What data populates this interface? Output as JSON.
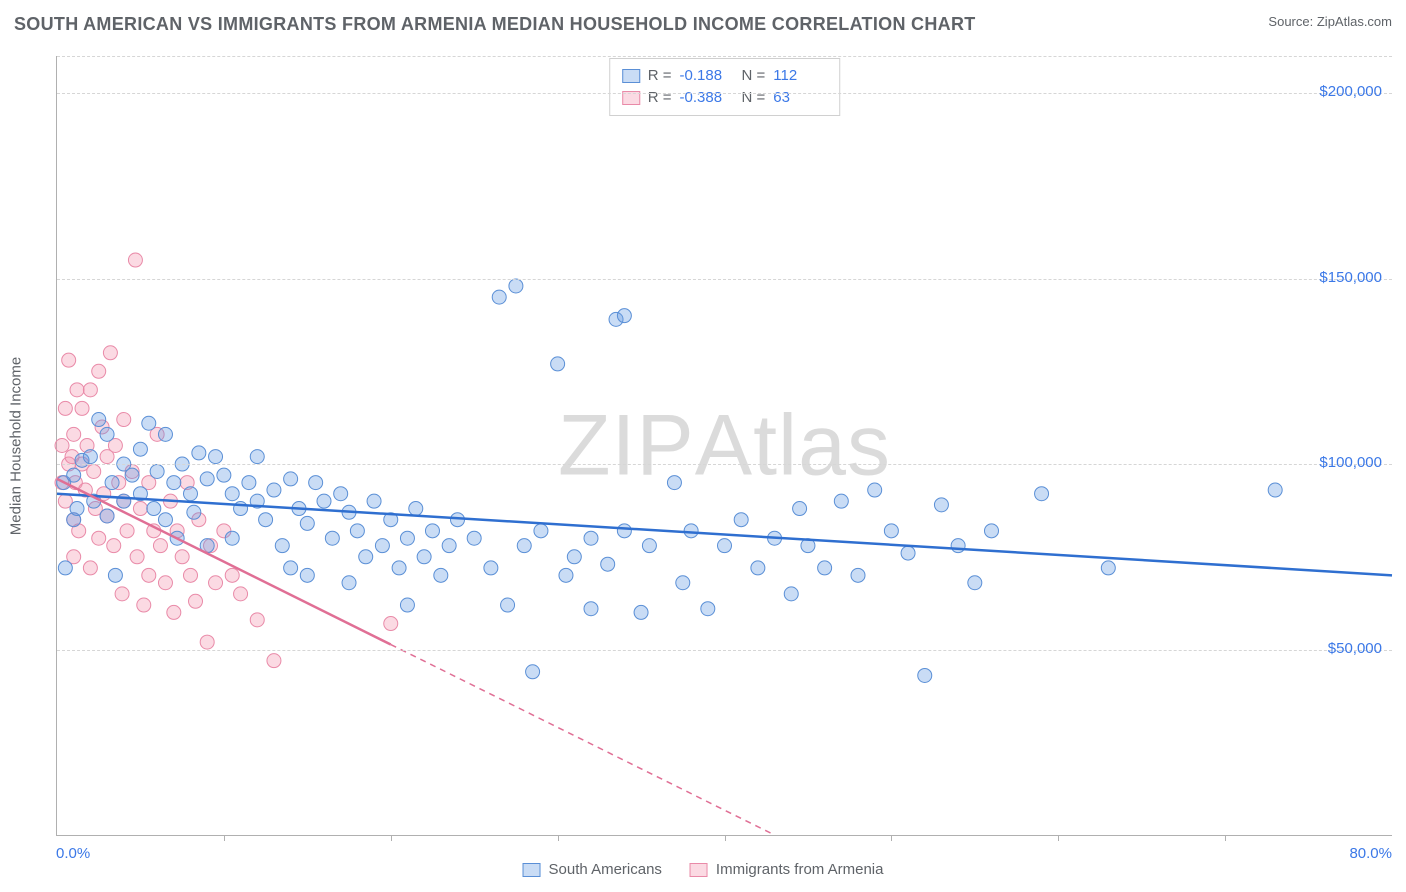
{
  "title": "SOUTH AMERICAN VS IMMIGRANTS FROM ARMENIA MEDIAN HOUSEHOLD INCOME CORRELATION CHART",
  "source_label": "Source:",
  "source_name": "ZipAtlas.com",
  "watermark": "ZIPAtlas",
  "yaxis_label": "Median Household Income",
  "chart": {
    "type": "scatter",
    "xlim": [
      0,
      80
    ],
    "ylim": [
      0,
      210000
    ],
    "x_tick_label_left": "0.0%",
    "x_tick_label_right": "80.0%",
    "y_ticks": [
      50000,
      100000,
      150000,
      200000
    ],
    "y_tick_labels": [
      "$50,000",
      "$100,000",
      "$150,000",
      "$200,000"
    ],
    "grid_color": "#d6d6d6",
    "axis_color": "#b0b0b0",
    "background_color": "#ffffff",
    "x_minor_ticks": 8,
    "series": [
      {
        "id": "south_americans",
        "label": "South Americans",
        "marker_fill": "rgba(99,155,226,0.35)",
        "marker_stroke": "#5a8fd6",
        "marker_radius": 7,
        "trend_color": "#2f6fd0",
        "trend_width": 2.5,
        "trend_dash": "none",
        "trend": {
          "x1": 0,
          "y1": 92000,
          "x2": 80,
          "y2": 70000
        },
        "R": "-0.188",
        "N": "112",
        "points": [
          [
            0.5,
            72000
          ],
          [
            0.4,
            95000
          ],
          [
            1,
            97000
          ],
          [
            1,
            85000
          ],
          [
            1.5,
            101000
          ],
          [
            1.2,
            88000
          ],
          [
            2,
            102000
          ],
          [
            2.2,
            90000
          ],
          [
            2.5,
            112000
          ],
          [
            3,
            108000
          ],
          [
            3,
            86000
          ],
          [
            3.3,
            95000
          ],
          [
            3.5,
            70000
          ],
          [
            4,
            100000
          ],
          [
            4,
            90000
          ],
          [
            4.5,
            97000
          ],
          [
            5,
            104000
          ],
          [
            5,
            92000
          ],
          [
            5.5,
            111000
          ],
          [
            5.8,
            88000
          ],
          [
            6,
            98000
          ],
          [
            6.5,
            108000
          ],
          [
            6.5,
            85000
          ],
          [
            7,
            95000
          ],
          [
            7.2,
            80000
          ],
          [
            7.5,
            100000
          ],
          [
            8,
            92000
          ],
          [
            8.2,
            87000
          ],
          [
            8.5,
            103000
          ],
          [
            9,
            96000
          ],
          [
            9,
            78000
          ],
          [
            9.5,
            102000
          ],
          [
            10,
            97000
          ],
          [
            10.5,
            92000
          ],
          [
            10.5,
            80000
          ],
          [
            11,
            88000
          ],
          [
            11.5,
            95000
          ],
          [
            12,
            90000
          ],
          [
            12,
            102000
          ],
          [
            12.5,
            85000
          ],
          [
            13,
            93000
          ],
          [
            13.5,
            78000
          ],
          [
            14,
            96000
          ],
          [
            14,
            72000
          ],
          [
            14.5,
            88000
          ],
          [
            15,
            84000
          ],
          [
            15,
            70000
          ],
          [
            15.5,
            95000
          ],
          [
            16,
            90000
          ],
          [
            16.5,
            80000
          ],
          [
            17,
            92000
          ],
          [
            17.5,
            87000
          ],
          [
            17.5,
            68000
          ],
          [
            18,
            82000
          ],
          [
            18.5,
            75000
          ],
          [
            19,
            90000
          ],
          [
            19.5,
            78000
          ],
          [
            20,
            85000
          ],
          [
            20.5,
            72000
          ],
          [
            21,
            80000
          ],
          [
            21,
            62000
          ],
          [
            21.5,
            88000
          ],
          [
            22,
            75000
          ],
          [
            22.5,
            82000
          ],
          [
            23,
            70000
          ],
          [
            23.5,
            78000
          ],
          [
            24,
            85000
          ],
          [
            25,
            80000
          ],
          [
            26,
            72000
          ],
          [
            26.5,
            145000
          ],
          [
            27,
            62000
          ],
          [
            27.5,
            148000
          ],
          [
            28,
            78000
          ],
          [
            28.5,
            44000
          ],
          [
            29,
            82000
          ],
          [
            30,
            127000
          ],
          [
            30.5,
            70000
          ],
          [
            31,
            75000
          ],
          [
            32,
            80000
          ],
          [
            32,
            61000
          ],
          [
            33,
            73000
          ],
          [
            33.5,
            139000
          ],
          [
            34,
            82000
          ],
          [
            34,
            140000
          ],
          [
            35,
            60000
          ],
          [
            35.5,
            78000
          ],
          [
            37,
            95000
          ],
          [
            37.5,
            68000
          ],
          [
            38,
            82000
          ],
          [
            39,
            61000
          ],
          [
            40,
            78000
          ],
          [
            41,
            85000
          ],
          [
            42,
            72000
          ],
          [
            43,
            80000
          ],
          [
            44,
            65000
          ],
          [
            44.5,
            88000
          ],
          [
            45,
            78000
          ],
          [
            46,
            72000
          ],
          [
            47,
            90000
          ],
          [
            48,
            70000
          ],
          [
            49,
            93000
          ],
          [
            50,
            82000
          ],
          [
            51,
            76000
          ],
          [
            52,
            43000
          ],
          [
            53,
            89000
          ],
          [
            54,
            78000
          ],
          [
            55,
            68000
          ],
          [
            56,
            82000
          ],
          [
            59,
            92000
          ],
          [
            63,
            72000
          ],
          [
            73,
            93000
          ]
        ]
      },
      {
        "id": "armenia",
        "label": "Immigrants from Armenia",
        "marker_fill": "rgba(243,150,175,0.35)",
        "marker_stroke": "#e98aa8",
        "marker_radius": 7,
        "trend_color": "#e06f95",
        "trend_width": 2.5,
        "trend_dash": "6 5",
        "trend": {
          "x1": 0,
          "y1": 96000,
          "x2": 43,
          "y2": 0
        },
        "solid_until_x": 20,
        "R": "-0.388",
        "N": "63",
        "points": [
          [
            0.3,
            95000
          ],
          [
            0.3,
            105000
          ],
          [
            0.5,
            115000
          ],
          [
            0.5,
            90000
          ],
          [
            0.7,
            128000
          ],
          [
            0.7,
            100000
          ],
          [
            0.9,
            102000
          ],
          [
            1,
            75000
          ],
          [
            1,
            85000
          ],
          [
            1,
            108000
          ],
          [
            1.1,
            95000
          ],
          [
            1.2,
            120000
          ],
          [
            1.3,
            82000
          ],
          [
            1.5,
            100000
          ],
          [
            1.5,
            115000
          ],
          [
            1.7,
            93000
          ],
          [
            1.8,
            105000
          ],
          [
            2,
            72000
          ],
          [
            2,
            120000
          ],
          [
            2.2,
            98000
          ],
          [
            2.3,
            88000
          ],
          [
            2.5,
            125000
          ],
          [
            2.5,
            80000
          ],
          [
            2.7,
            110000
          ],
          [
            2.8,
            92000
          ],
          [
            3,
            86000
          ],
          [
            3,
            102000
          ],
          [
            3.2,
            130000
          ],
          [
            3.4,
            78000
          ],
          [
            3.5,
            105000
          ],
          [
            3.7,
            95000
          ],
          [
            3.9,
            65000
          ],
          [
            4,
            90000
          ],
          [
            4,
            112000
          ],
          [
            4.2,
            82000
          ],
          [
            4.5,
            98000
          ],
          [
            4.7,
            155000
          ],
          [
            4.8,
            75000
          ],
          [
            5,
            88000
          ],
          [
            5.2,
            62000
          ],
          [
            5.5,
            95000
          ],
          [
            5.5,
            70000
          ],
          [
            5.8,
            82000
          ],
          [
            6,
            108000
          ],
          [
            6.2,
            78000
          ],
          [
            6.5,
            68000
          ],
          [
            6.8,
            90000
          ],
          [
            7,
            60000
          ],
          [
            7.2,
            82000
          ],
          [
            7.5,
            75000
          ],
          [
            7.8,
            95000
          ],
          [
            8,
            70000
          ],
          [
            8.3,
            63000
          ],
          [
            8.5,
            85000
          ],
          [
            9,
            52000
          ],
          [
            9.2,
            78000
          ],
          [
            9.5,
            68000
          ],
          [
            10,
            82000
          ],
          [
            10.5,
            70000
          ],
          [
            11,
            65000
          ],
          [
            12,
            58000
          ],
          [
            13,
            47000
          ],
          [
            20,
            57000
          ]
        ]
      }
    ]
  },
  "stats_box": {
    "r_label": "R =",
    "n_label": "N ="
  },
  "legend": {
    "series1": "South Americans",
    "series2": "Immigrants from Armenia"
  }
}
